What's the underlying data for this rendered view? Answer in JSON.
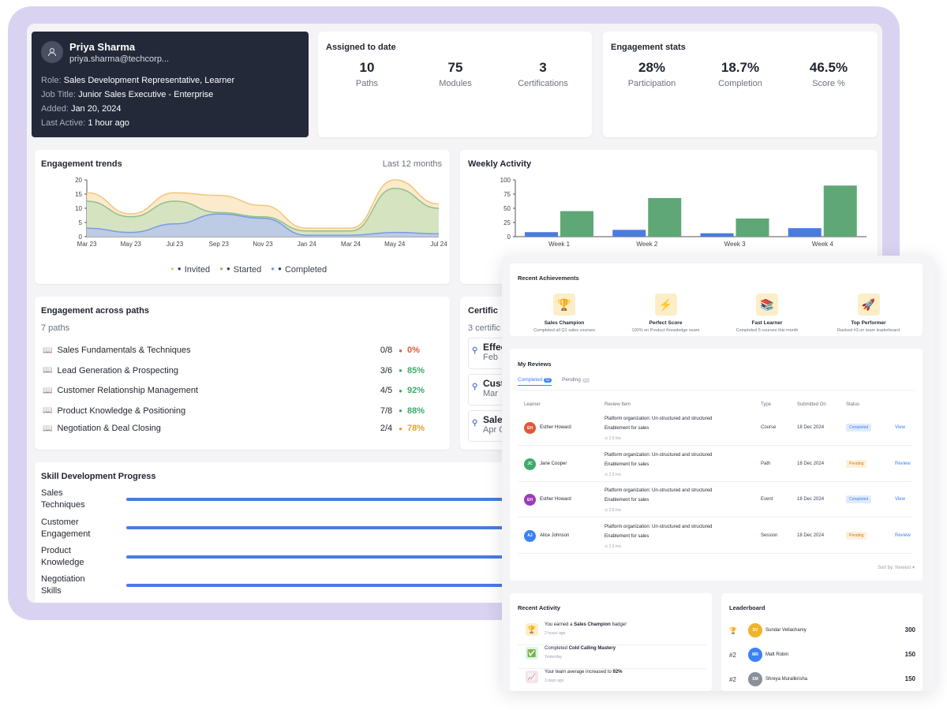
{
  "profile": {
    "name": "Priya Sharma",
    "email": "priya.sharma@techcorp...",
    "role_key": "Role:",
    "role": "Sales Development Representative, Learner",
    "job_key": "Job Title:",
    "job": "Junior Sales Executive - Enterprise",
    "added_key": "Added:",
    "added": "Jan 20, 2024",
    "active_key": "Last Active:",
    "active": "1 hour ago"
  },
  "assigned": {
    "title": "Assigned to date",
    "stats": [
      {
        "value": "10",
        "label": "Paths"
      },
      {
        "value": "75",
        "label": "Modules"
      },
      {
        "value": "3",
        "label": "Certifications"
      }
    ]
  },
  "engagement": {
    "title": "Engagement stats",
    "stats": [
      {
        "value": "28%",
        "label": "Participation"
      },
      {
        "value": "18.7%",
        "label": "Completion"
      },
      {
        "value": "46.5%",
        "label": "Score %"
      }
    ]
  },
  "trends": {
    "title": "Engagement trends",
    "range": "Last 12 months",
    "legend": [
      "Invited",
      "Started",
      "Completed"
    ],
    "colors": {
      "invited": "#f2c57c",
      "started": "#8ec289",
      "completed": "#7a9be3"
    }
  },
  "weekly": {
    "title": "Weekly Activity"
  },
  "chart_data": [
    {
      "type": "area",
      "title": "Engagement trends",
      "x": [
        "Mar 23",
        "May 23",
        "Jul 23",
        "Sep 23",
        "Nov 23",
        "Jan 24",
        "Mar 24",
        "May 24",
        "Jul 24"
      ],
      "yticks": [
        "20",
        "15",
        "10",
        "5",
        "0"
      ],
      "ylim": [
        0,
        20
      ],
      "series": [
        {
          "name": "Invited",
          "values": [
            15.5,
            8,
            15.5,
            14.5,
            11,
            3,
            3,
            20,
            11.5
          ]
        },
        {
          "name": "Started",
          "values": [
            12.5,
            7,
            12.5,
            8.5,
            7,
            2,
            2,
            17,
            10
          ]
        },
        {
          "name": "Completed",
          "values": [
            3,
            1.5,
            4.5,
            8,
            6.5,
            0.5,
            0.5,
            1.5,
            1
          ]
        }
      ]
    },
    {
      "type": "bar",
      "title": "Weekly Activity",
      "categories": [
        "Week 1",
        "Week 2",
        "Week 3",
        "Week 4"
      ],
      "yticks": [
        "100",
        "75",
        "50",
        "25",
        "0"
      ],
      "ylim": [
        0,
        100
      ],
      "series": [
        {
          "values": [
            8,
            12,
            6,
            15
          ],
          "color": "#4a7be0"
        },
        {
          "values": [
            45,
            68,
            32,
            90
          ],
          "color": "#5fa777"
        }
      ]
    }
  ],
  "paths": {
    "title": "Engagement across paths",
    "subtitle": "7 paths",
    "items": [
      {
        "name": "Sales Fundamentals & Techniques",
        "count": "0/8",
        "pct": "0%",
        "color": "#e0593a"
      },
      {
        "name": "Lead Generation & Prospecting",
        "count": "3/6",
        "pct": "85%",
        "color": "#3faa6b"
      },
      {
        "name": "Customer Relationship Management",
        "count": "4/5",
        "pct": "92%",
        "color": "#3faa6b"
      },
      {
        "name": "Product Knowledge & Positioning",
        "count": "7/8",
        "pct": "88%",
        "color": "#3faa6b"
      },
      {
        "name": "Negotiation & Deal Closing",
        "count": "2/4",
        "pct": "78%",
        "color": "#e0a030"
      }
    ]
  },
  "certs": {
    "title": "Certific",
    "subtitle": "3 certific",
    "items": [
      {
        "name": "Effec",
        "date": "Feb"
      },
      {
        "name": "Cust",
        "date": "Mar"
      },
      {
        "name": "Sale",
        "date": "Apr C"
      }
    ]
  },
  "skills": {
    "title": "Skill Development Progress",
    "items": [
      {
        "line1": "Sales",
        "line2": "Techniques"
      },
      {
        "line1": "Customer",
        "line2": "Engagement"
      },
      {
        "line1": "Product",
        "line2": "Knowledge"
      },
      {
        "line1": "Negotiation",
        "line2": "Skills"
      }
    ]
  },
  "achievements": {
    "title": "Recent Achievements",
    "items": [
      {
        "icon": "trophy-icon",
        "glyph": "🏆",
        "title": "Sales Champion",
        "desc": "Completed all Q1 sales courses"
      },
      {
        "icon": "lightning-icon",
        "glyph": "⚡",
        "title": "Perfect Score",
        "desc": "100% on Product Knowledge exam"
      },
      {
        "icon": "books-icon",
        "glyph": "📚",
        "title": "Fast Learner",
        "desc": "Completed 5 courses this month"
      },
      {
        "icon": "rocket-icon",
        "glyph": "🚀",
        "title": "Top Performer",
        "desc": "Ranked #3 on team leaderboard"
      }
    ]
  },
  "reviews": {
    "title": "My Reviews",
    "tab_completed": "Completed",
    "tab_completed_count": "52",
    "tab_pending": "Pending",
    "tab_pending_count": "31",
    "headers": [
      "Learner",
      "Review Item",
      "Type",
      "Submitted On",
      "Status"
    ],
    "rows": [
      {
        "initials": "EH",
        "avatar_color": "#e0593a",
        "learner": "Esther Howard",
        "item1": "Platform organization: Un-structured and structured",
        "item2": "Enablement for sales",
        "hrs": "⊙ 2.5 hrs",
        "type": "Course",
        "date": "18 Dec 2024",
        "status": "Completed",
        "action": "View"
      },
      {
        "initials": "JC",
        "avatar_color": "#3faa6b",
        "learner": "Jane Cooper",
        "item1": "Platform organization: Un-structured and structured",
        "item2": "Enablement for sales",
        "hrs": "⊙ 2.5 hrs",
        "type": "Path",
        "date": "18 Dec 2024",
        "status": "Pending",
        "action": "Review"
      },
      {
        "initials": "EH",
        "avatar_color": "#9b3bb8",
        "learner": "Esther Howard",
        "item1": "Platform organization: Un-structured and structured",
        "item2": "Enablement for sales",
        "hrs": "⊙ 2.5 hrs",
        "type": "Event",
        "date": "18 Dec 2024",
        "status": "Completed",
        "action": "View"
      },
      {
        "initials": "AJ",
        "avatar_color": "#3b82f6",
        "learner": "Alice Johnson",
        "item1": "Platform organization: Un-structured and structured",
        "item2": "Enablement for sales",
        "hrs": "⊙ 2.5 hrs",
        "type": "Session",
        "date": "18 Dec 2024",
        "status": "Pending",
        "action": "Review"
      }
    ],
    "sort": "Sort by: Newest ▾"
  },
  "activity": {
    "title": "Recent Activity",
    "items": [
      {
        "icon": "trophy-icon",
        "glyph": "🏆",
        "bg": "#fdeec8",
        "pre": "You earned a ",
        "bold": "Sales Champion",
        "post": " badge!",
        "time": "2 hours ago"
      },
      {
        "icon": "check-icon",
        "glyph": "✅",
        "bg": "#dff3e4",
        "pre": "Completed ",
        "bold": "Cold Calling Mastery",
        "post": "",
        "time": "Yesterday"
      },
      {
        "icon": "chart-icon",
        "glyph": "📈",
        "bg": "#fbe3ea",
        "pre": "Your team average increased to ",
        "bold": "92%",
        "post": "",
        "time": "3 days ago"
      }
    ]
  },
  "leaderboard": {
    "title": "Leaderboard",
    "items": [
      {
        "rank": "🏆",
        "initials": "SV",
        "color": "#f0b429",
        "name": "Sundar Vellachamy",
        "points": "300"
      },
      {
        "rank": "#2",
        "initials": "MR",
        "color": "#3b82f6",
        "name": "Matt Robin",
        "points": "150"
      },
      {
        "rank": "#2",
        "initials": "SM",
        "color": "#8a8f99",
        "name": "Shreya Muralikrisha",
        "points": "150"
      }
    ]
  }
}
